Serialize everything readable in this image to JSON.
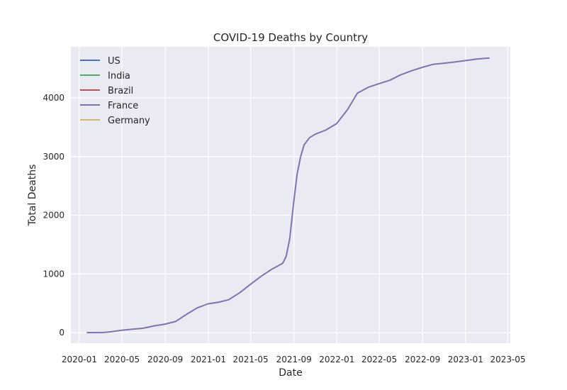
{
  "chart_data": {
    "type": "line",
    "title": "COVID-19 Deaths by Country",
    "xlabel": "Date",
    "ylabel": "Total Deaths",
    "grid": true,
    "legend_position": "top-left",
    "x_range": [
      "2019-12-08",
      "2023-05-08"
    ],
    "ylim": [
      -180,
      4870
    ],
    "x_ticks": [
      "2020-01",
      "2020-05",
      "2020-09",
      "2021-01",
      "2021-05",
      "2021-09",
      "2022-01",
      "2022-05",
      "2022-09",
      "2023-01",
      "2023-05"
    ],
    "y_ticks": [
      0,
      1000,
      2000,
      3000,
      4000
    ],
    "series": [
      {
        "name": "US",
        "color": "#4c72b0",
        "points": []
      },
      {
        "name": "India",
        "color": "#55a868",
        "points": []
      },
      {
        "name": "Brazil",
        "color": "#c44e52",
        "points": []
      },
      {
        "name": "France",
        "color": "#8172b2",
        "points": [
          [
            "2020-01-22",
            0
          ],
          [
            "2020-03-10",
            2
          ],
          [
            "2020-03-31",
            15
          ],
          [
            "2020-04-30",
            40
          ],
          [
            "2020-05-31",
            58
          ],
          [
            "2020-06-30",
            75
          ],
          [
            "2020-07-31",
            115
          ],
          [
            "2020-08-31",
            145
          ],
          [
            "2020-09-30",
            190
          ],
          [
            "2020-10-31",
            310
          ],
          [
            "2020-11-30",
            420
          ],
          [
            "2020-12-31",
            490
          ],
          [
            "2021-01-31",
            520
          ],
          [
            "2021-02-28",
            560
          ],
          [
            "2021-03-31",
            680
          ],
          [
            "2021-04-30",
            820
          ],
          [
            "2021-05-31",
            960
          ],
          [
            "2021-06-30",
            1080
          ],
          [
            "2021-07-31",
            1180
          ],
          [
            "2021-08-10",
            1300
          ],
          [
            "2021-08-20",
            1600
          ],
          [
            "2021-08-31",
            2200
          ],
          [
            "2021-09-10",
            2700
          ],
          [
            "2021-09-20",
            3000
          ],
          [
            "2021-09-30",
            3200
          ],
          [
            "2021-10-15",
            3320
          ],
          [
            "2021-10-31",
            3380
          ],
          [
            "2021-11-30",
            3450
          ],
          [
            "2021-12-31",
            3560
          ],
          [
            "2022-01-31",
            3800
          ],
          [
            "2022-02-28",
            4080
          ],
          [
            "2022-03-31",
            4180
          ],
          [
            "2022-04-30",
            4240
          ],
          [
            "2022-05-31",
            4300
          ],
          [
            "2022-06-30",
            4390
          ],
          [
            "2022-07-31",
            4460
          ],
          [
            "2022-08-31",
            4520
          ],
          [
            "2022-09-30",
            4570
          ],
          [
            "2022-10-31",
            4590
          ],
          [
            "2022-11-30",
            4610
          ],
          [
            "2022-12-31",
            4635
          ],
          [
            "2023-01-31",
            4660
          ],
          [
            "2023-02-28",
            4675
          ],
          [
            "2023-03-10",
            4677
          ]
        ]
      },
      {
        "name": "Germany",
        "color": "#ccb974",
        "points": []
      }
    ]
  }
}
